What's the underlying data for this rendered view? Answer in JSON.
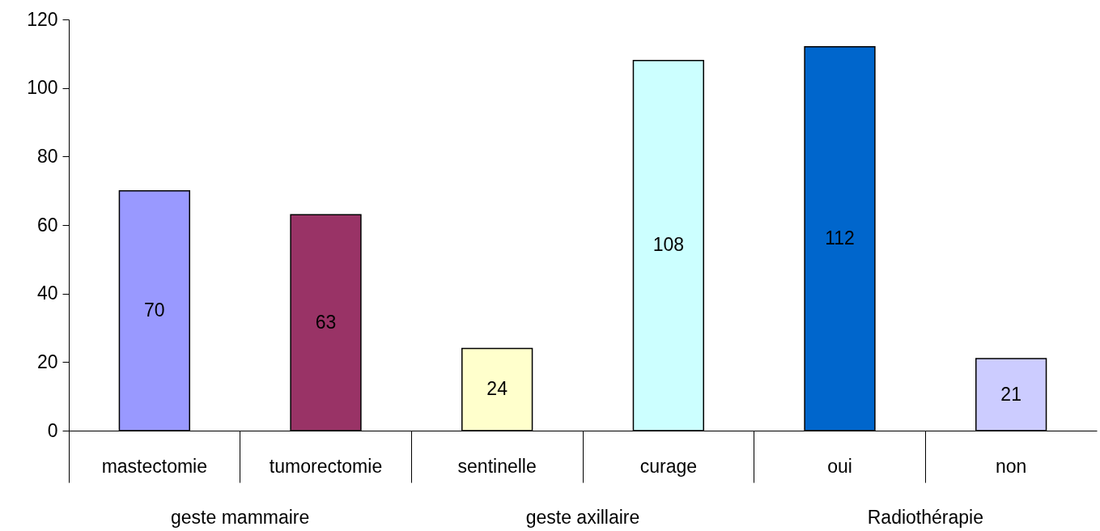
{
  "chart_data": {
    "type": "bar",
    "categories": [
      "mastectomie",
      "tumorectomie",
      "sentinelle",
      "curage",
      "oui",
      "non"
    ],
    "values": [
      70,
      63,
      24,
      108,
      112,
      21
    ],
    "colors": [
      "#9999ff",
      "#993366",
      "#ffffcc",
      "#ccffff",
      "#0066cc",
      "#ccccff"
    ],
    "ylim": [
      0,
      120
    ],
    "yticks": [
      0,
      20,
      40,
      60,
      80,
      100,
      120
    ],
    "grid": false,
    "legend": false,
    "data_labels": true,
    "annotations": [
      "geste mammaire",
      "geste axillaire",
      "Radiothérapie"
    ]
  }
}
